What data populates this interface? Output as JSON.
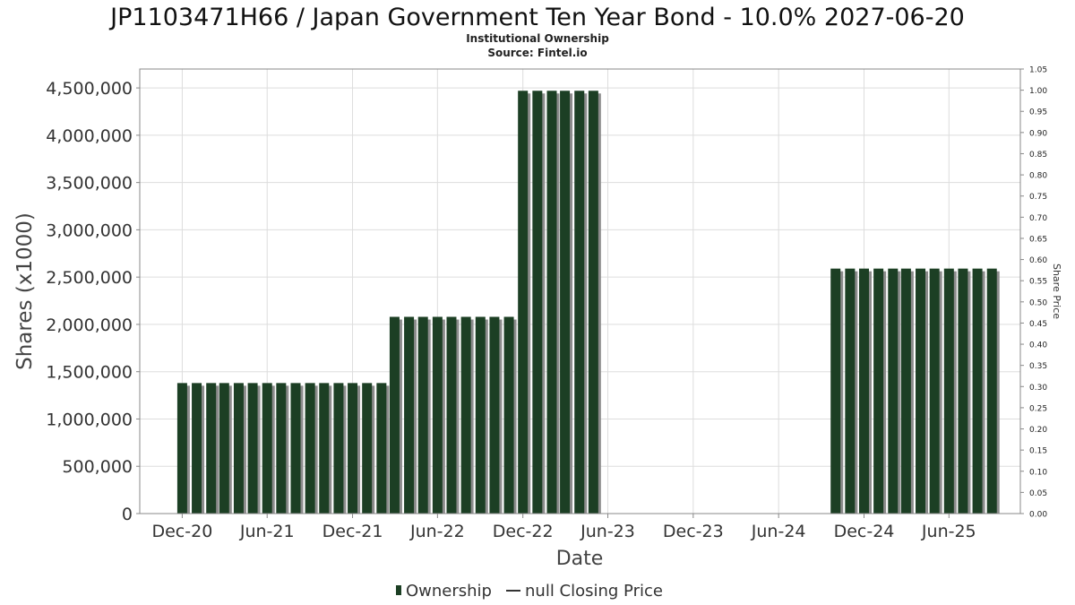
{
  "chart_data": {
    "type": "bar",
    "title": "JP1103471H66 / Japan Government Ten Year Bond - 10.0% 2027-06-20",
    "subtitle_1": "Institutional Ownership",
    "subtitle_2": "Source: Fintel.io",
    "xlabel": "Date",
    "ylabel": "Shares (x1000)",
    "y2label": "Share Price",
    "ylim": [
      0,
      4700000
    ],
    "y2lim": [
      0,
      1.05
    ],
    "yticks": [
      0,
      500000,
      1000000,
      1500000,
      2000000,
      2500000,
      3000000,
      3500000,
      4000000,
      4500000
    ],
    "ytick_labels": [
      "0",
      "500,000",
      "1,000,000",
      "1,500,000",
      "2,000,000",
      "2,500,000",
      "3,000,000",
      "3,500,000",
      "4,000,000",
      "4,500,000"
    ],
    "y2tick_labels": [
      "0.00",
      "0.05",
      "0.10",
      "0.15",
      "0.20",
      "0.25",
      "0.30",
      "0.35",
      "0.40",
      "0.45",
      "0.50",
      "0.55",
      "0.60",
      "0.65",
      "0.70",
      "0.75",
      "0.80",
      "0.85",
      "0.90",
      "0.95",
      "1.00",
      "1.05"
    ],
    "xtick_labels": [
      "Dec-20",
      "Jun-21",
      "Dec-21",
      "Jun-22",
      "Dec-22",
      "Jun-23",
      "Dec-23",
      "Jun-24",
      "Dec-24",
      "Jun-25"
    ],
    "xlim": [
      "2020-09-01",
      "2025-11-01"
    ],
    "grid": true,
    "legend_position": "bottom-center",
    "series": [
      {
        "name": "Ownership",
        "color": "#1c3f24",
        "x": [
          "2020-12-01",
          "2021-01-01",
          "2021-02-01",
          "2021-03-01",
          "2021-04-01",
          "2021-05-01",
          "2021-06-01",
          "2021-07-01",
          "2021-08-01",
          "2021-09-01",
          "2021-10-01",
          "2021-11-01",
          "2021-12-01",
          "2022-01-01",
          "2022-02-01",
          "2022-03-01",
          "2022-04-01",
          "2022-05-01",
          "2022-06-01",
          "2022-07-01",
          "2022-08-01",
          "2022-09-01",
          "2022-10-01",
          "2022-11-01",
          "2022-12-01",
          "2023-01-01",
          "2023-02-01",
          "2023-03-01",
          "2023-04-01",
          "2023-05-01",
          "2024-10-01",
          "2024-11-01",
          "2024-12-01",
          "2025-01-01",
          "2025-02-01",
          "2025-03-01",
          "2025-04-01",
          "2025-05-01",
          "2025-06-01",
          "2025-07-01",
          "2025-08-01",
          "2025-09-01"
        ],
        "values": [
          1380000,
          1380000,
          1380000,
          1380000,
          1380000,
          1380000,
          1380000,
          1380000,
          1380000,
          1380000,
          1380000,
          1380000,
          1380000,
          1380000,
          1380000,
          2080000,
          2080000,
          2080000,
          2080000,
          2080000,
          2080000,
          2080000,
          2080000,
          2080000,
          4470000,
          4470000,
          4470000,
          4470000,
          4470000,
          4470000,
          2590000,
          2590000,
          2590000,
          2590000,
          2590000,
          2590000,
          2590000,
          2590000,
          2590000,
          2590000,
          2590000,
          2590000
        ]
      }
    ],
    "legend": {
      "ownership_label": "Ownership",
      "price_label": "null Closing Price",
      "ownership_color": "#1c3f24",
      "price_color": "#333333"
    }
  }
}
